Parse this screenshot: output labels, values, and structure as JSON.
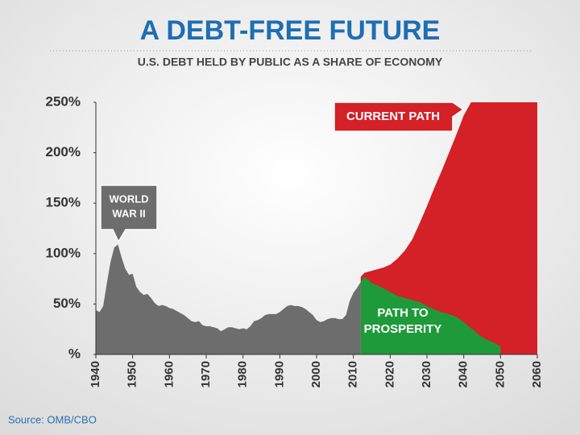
{
  "chart_data": {
    "type": "area",
    "title": "A DEBT-FREE FUTURE",
    "subtitle": "U.S. DEBT HELD BY PUBLIC AS A SHARE OF ECONOMY",
    "source": "Source: OMB/CBO",
    "xlim": [
      1940,
      2060
    ],
    "xticks": [
      1940,
      1950,
      1960,
      1970,
      1980,
      1990,
      2000,
      2010,
      2020,
      2030,
      2040,
      2050,
      2060
    ],
    "ylim": [
      0,
      250
    ],
    "yticks": [
      {
        "value": 0,
        "label": "%"
      },
      {
        "value": 50,
        "label": "50%"
      },
      {
        "value": 100,
        "label": "100%"
      },
      {
        "value": 150,
        "label": "150%"
      },
      {
        "value": 200,
        "label": "200%"
      },
      {
        "value": 250,
        "label": "250%"
      }
    ],
    "series": [
      {
        "color": "#d42027",
        "x": [
          2012,
          2013,
          2015,
          2018,
          2020,
          2022,
          2024,
          2026,
          2028,
          2030,
          2032,
          2034,
          2036,
          2038,
          2040,
          2042,
          2060
        ],
        "values": [
          77,
          81,
          83,
          86,
          89,
          95,
          103,
          114,
          130,
          147,
          165,
          182,
          200,
          218,
          237,
          250,
          250
        ]
      },
      {
        "color": "#6d6d6d",
        "x": [
          1940,
          1941,
          1942,
          1943,
          1944,
          1945,
          1946,
          1947,
          1948,
          1949,
          1950,
          1951,
          1952,
          1953,
          1954,
          1955,
          1956,
          1957,
          1958,
          1959,
          1960,
          1961,
          1962,
          1963,
          1964,
          1965,
          1966,
          1967,
          1968,
          1969,
          1970,
          1971,
          1972,
          1973,
          1974,
          1975,
          1976,
          1977,
          1978,
          1979,
          1980,
          1981,
          1982,
          1983,
          1984,
          1985,
          1986,
          1987,
          1988,
          1989,
          1990,
          1991,
          1992,
          1993,
          1994,
          1995,
          1996,
          1997,
          1998,
          1999,
          2000,
          2001,
          2002,
          2003,
          2004,
          2005,
          2006,
          2007,
          2008,
          2009,
          2010,
          2011,
          2012
        ],
        "values": [
          44,
          42,
          48,
          71,
          92,
          106,
          109,
          96,
          85,
          79,
          80,
          67,
          62,
          59,
          60,
          56,
          51,
          48,
          49,
          48,
          46,
          45,
          43,
          41,
          39,
          36,
          33,
          32,
          33,
          29,
          28,
          28,
          27,
          26,
          23,
          25,
          27,
          27,
          26,
          25,
          26,
          25,
          28,
          33,
          34,
          36,
          39,
          40,
          40,
          40,
          42,
          45,
          48,
          49,
          48,
          48,
          47,
          45,
          42,
          39,
          34,
          32,
          33,
          35,
          36,
          36,
          35,
          35,
          39,
          53,
          61,
          66,
          72
        ]
      },
      {
        "color": "#1f9a3a",
        "x": [
          2012,
          2013,
          2015,
          2018,
          2020,
          2022,
          2025,
          2028,
          2030,
          2033,
          2036,
          2038,
          2040,
          2042,
          2044,
          2046,
          2048,
          2050
        ],
        "values": [
          72,
          77,
          71,
          66,
          62,
          58,
          55,
          52,
          48,
          43,
          40,
          37,
          32,
          26,
          20,
          15,
          12,
          8
        ]
      }
    ],
    "annotations": [
      {
        "lines": [
          "WORLD",
          "WAR II"
        ]
      },
      {
        "lines": [
          "CURRENT PATH"
        ]
      },
      {
        "lines": [
          "PATH TO",
          "PROSPERITY"
        ]
      }
    ]
  }
}
